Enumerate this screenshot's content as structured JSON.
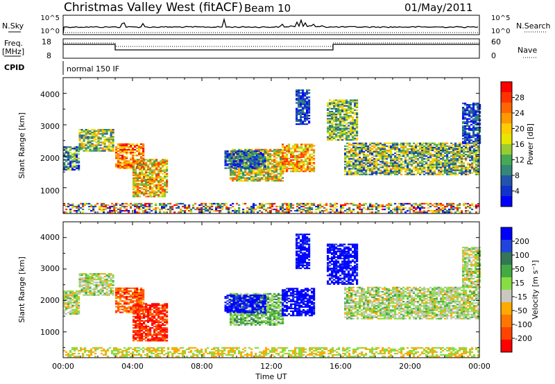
{
  "header": {
    "title": "Christmas Valley West (fitACF)",
    "beam": "Beam 10",
    "date": "01/May/2011"
  },
  "params": {
    "nsky_label": "N.Sky",
    "nsearch_label": "N.Search",
    "freq_label_1": "Freq.",
    "freq_label_2": "[MHz]",
    "nave_label": "Nave",
    "cpid_label": "CPID",
    "cpid_value": "normal 150 IF",
    "noise_ticks": [
      "10^5",
      "10^0"
    ],
    "freq_ticks": [
      "18",
      "8"
    ],
    "nave_ticks": [
      "60",
      "0"
    ]
  },
  "axes": {
    "xlabel": "Time UT",
    "x_ticks": [
      "00:00",
      "04:00",
      "08:00",
      "12:00",
      "16:00",
      "20:00",
      "00:00"
    ],
    "ylabel": "Slant Range [km]",
    "y_ticks": [
      "1000",
      "2000",
      "3000",
      "4000"
    ]
  },
  "colorbars": {
    "power_label": "Power [dB]",
    "power_ticks": [
      "28",
      "24",
      "20",
      "16",
      "12",
      "8",
      "4"
    ],
    "power_colors": [
      "#ff0000",
      "#ff3300",
      "#ff6600",
      "#ff9900",
      "#ffcc00",
      "#e6e600",
      "#99cc33",
      "#44aa55",
      "#338877",
      "#2255aa",
      "#1133cc",
      "#0000ff"
    ],
    "velocity_label": "Velocity [m s⁻¹]",
    "velocity_ticks": [
      "200",
      "100",
      "50",
      "15",
      "-15",
      "-50",
      "-100",
      "-200"
    ],
    "velocity_colors": [
      "#0000ff",
      "#2244dd",
      "#337755",
      "#44aa44",
      "#88dd44",
      "#c8c8c0",
      "#ffaa00",
      "#ff7700",
      "#ff4400",
      "#ff0000"
    ]
  },
  "chart_data": [
    {
      "type": "heatmap",
      "name": "power",
      "xlabel": "Time UT",
      "ylabel": "Slant Range [km]",
      "xlim": [
        "00:00",
        "24:00"
      ],
      "ylim": [
        180,
        4500
      ],
      "colorbar_label": "Power [dB]",
      "colorbar_range": [
        0,
        32
      ]
    },
    {
      "type": "heatmap",
      "name": "velocity",
      "xlabel": "Time UT",
      "ylabel": "Slant Range [km]",
      "xlim": [
        "00:00",
        "24:00"
      ],
      "ylim": [
        180,
        4500
      ],
      "colorbar_label": "Velocity [m s⁻¹]",
      "colorbar_range": [
        -200,
        200
      ]
    }
  ]
}
